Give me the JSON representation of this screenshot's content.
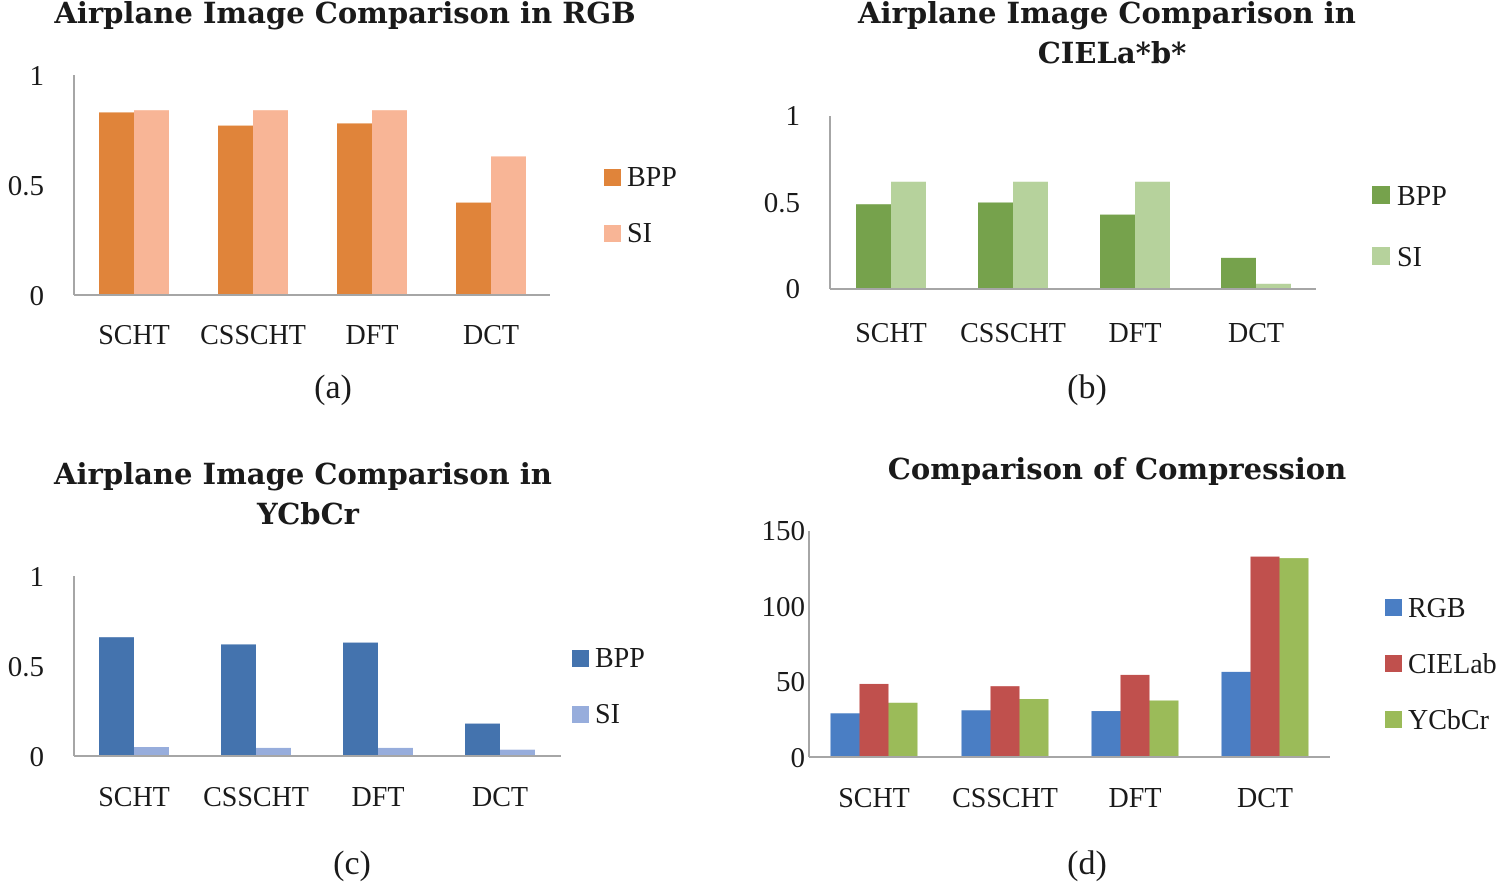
{
  "chart_data": [
    {
      "type": "bar",
      "title": "Airplane Image Comparison in RGB",
      "caption": "(a)",
      "categories": [
        "SCHT",
        "CSSCHT",
        "DFT",
        "DCT"
      ],
      "series": [
        {
          "name": "BPP",
          "values": [
            0.83,
            0.77,
            0.78,
            0.42
          ],
          "color": "#E0843A"
        },
        {
          "name": "SI",
          "values": [
            0.84,
            0.84,
            0.84,
            0.63
          ],
          "color": "#F8B596"
        }
      ],
      "ylim": [
        0,
        1
      ],
      "yticks": [
        "0",
        "0.5",
        "1"
      ],
      "legend": "right"
    },
    {
      "type": "bar",
      "title": "Airplane Image Comparison in CIELa*b*",
      "caption": "(b)",
      "categories": [
        "SCHT",
        "CSSCHT",
        "DFT",
        "DCT"
      ],
      "series": [
        {
          "name": "BPP",
          "values": [
            0.49,
            0.5,
            0.43,
            0.18
          ],
          "color": "#76A24C"
        },
        {
          "name": "SI",
          "values": [
            0.62,
            0.62,
            0.62,
            0.03
          ],
          "color": "#B6D29C"
        }
      ],
      "ylim": [
        0,
        1
      ],
      "yticks": [
        "0",
        "0.5",
        "1"
      ],
      "legend": "right"
    },
    {
      "type": "bar",
      "title": "Airplane Image Comparison in YCbCr",
      "caption": "(c)",
      "categories": [
        "SCHT",
        "CSSCHT",
        "DFT",
        "DCT"
      ],
      "series": [
        {
          "name": "BPP",
          "values": [
            0.66,
            0.62,
            0.63,
            0.18
          ],
          "color": "#4473AE"
        },
        {
          "name": "SI",
          "values": [
            0.05,
            0.045,
            0.045,
            0.035
          ],
          "color": "#97ADDC"
        }
      ],
      "ylim": [
        0,
        1
      ],
      "yticks": [
        "0",
        "0.5",
        "1"
      ],
      "legend": "right"
    },
    {
      "type": "bar",
      "title": "Comparison of Compression",
      "caption": "(d)",
      "categories": [
        "SCHT",
        "CSSCHT",
        "DFT",
        "DCT"
      ],
      "series": [
        {
          "name": "RGB",
          "values": [
            29,
            31,
            30.5,
            56.5
          ],
          "color": "#4A7EC4"
        },
        {
          "name": "CIELab",
          "values": [
            48.5,
            47,
            54.5,
            133
          ],
          "color": "#C0504D"
        },
        {
          "name": "YCbCr",
          "values": [
            36,
            38.5,
            37.5,
            132
          ],
          "color": "#9BBB59"
        }
      ],
      "ylim": [
        0,
        150
      ],
      "yticks": [
        "0",
        "50",
        "100",
        "150"
      ],
      "legend": "right"
    }
  ]
}
